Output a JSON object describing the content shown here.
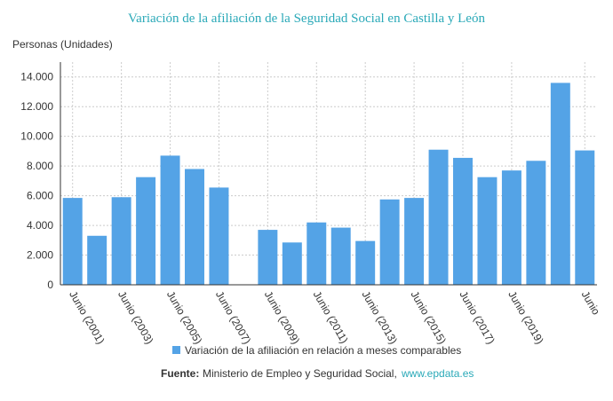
{
  "chart_data": {
    "type": "bar",
    "title": "Variación de la afiliación de la Seguridad Social en Castilla y León",
    "y_label": "Personas (Unidades)",
    "categories": [
      "Junio (2001)",
      null,
      "Junio (2003)",
      null,
      "Junio (2005)",
      null,
      "Junio (2007)",
      null,
      "Junio (2009)",
      null,
      "Junio (2011)",
      null,
      "Junio (2013)",
      null,
      "Junio (2015)",
      null,
      "Junio (2017)",
      null,
      "Junio (2019)",
      null,
      null,
      "Junio"
    ],
    "series": [
      {
        "name": "Variación de la afiliación en relación a meses comparables",
        "color": "#54a3e6",
        "values": [
          5850,
          3300,
          5900,
          7250,
          8700,
          7800,
          6550,
          null,
          3700,
          2850,
          4200,
          3850,
          2950,
          5750,
          5850,
          9100,
          8550,
          7250,
          7700,
          8350,
          13600,
          9050
        ]
      }
    ],
    "ylim": [
      0,
      15000
    ],
    "yticks": [
      0,
      {
        "value": 2000,
        "label": "2.000"
      },
      {
        "value": 4000,
        "label": "4.000"
      },
      {
        "value": 6000,
        "label": "6.000"
      },
      {
        "value": 8000,
        "label": "8.000"
      },
      {
        "value": 10000,
        "label": "10.000"
      },
      {
        "value": 12000,
        "label": "12.000"
      },
      {
        "value": 14000,
        "label": "14.000"
      }
    ],
    "grid": true,
    "source": {
      "label": "Fuente:",
      "text": "Ministerio de Empleo y Seguridad Social,",
      "link": "www.epdata.es"
    }
  }
}
